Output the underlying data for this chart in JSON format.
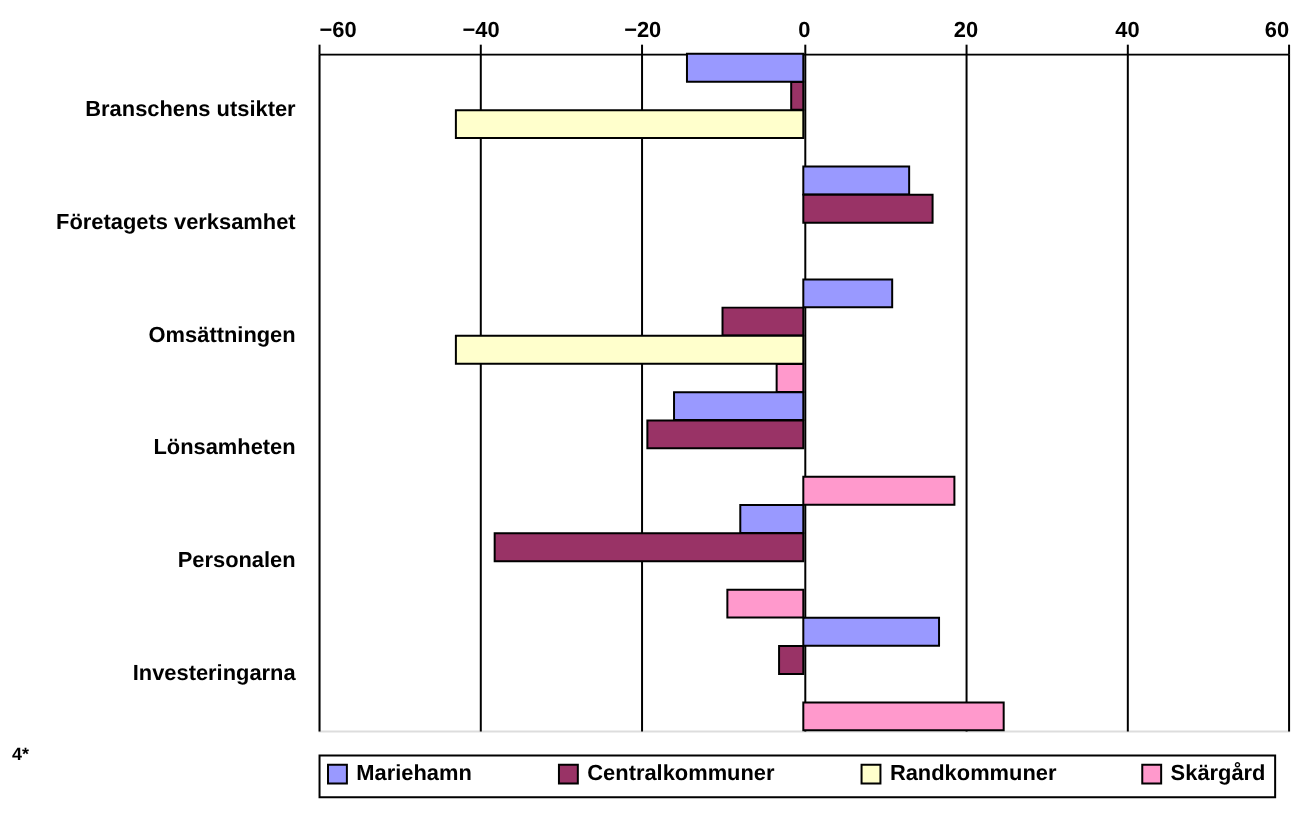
{
  "chart_data": {
    "type": "bar",
    "orientation": "horizontal",
    "categories": [
      "Branschens utsikter",
      "Företagets verksamhet",
      "Omsättningen",
      "Lönsamheten",
      "Personalen",
      "Investeringarna"
    ],
    "series": [
      {
        "name": "Mariehamn",
        "color": "#9999ff",
        "values": [
          -14.4,
          13.1,
          11.0,
          -16.0,
          -7.8,
          16.8
        ]
      },
      {
        "name": "Centralkommuner",
        "color": "#993366",
        "values": [
          -1.5,
          16.0,
          -10.0,
          -19.3,
          -38.2,
          -3.0
        ]
      },
      {
        "name": "Randkommuner",
        "color": "#ffffcc",
        "values": [
          -43.0,
          null,
          -43.0,
          null,
          null,
          null
        ]
      },
      {
        "name": "Skärgård",
        "color": "#ff99cc",
        "values": [
          null,
          null,
          -3.3,
          18.7,
          -9.4,
          24.8
        ]
      }
    ],
    "xlim": [
      -60,
      60
    ],
    "xticks": [
      -60,
      -40,
      -20,
      0,
      20,
      40,
      60
    ],
    "grid": "x",
    "legend": "bottom",
    "annotations": [
      "4*"
    ]
  }
}
